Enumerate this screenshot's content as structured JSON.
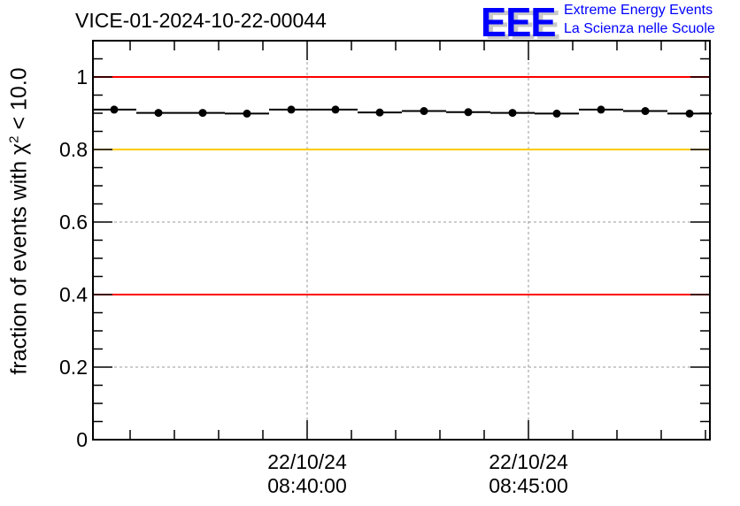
{
  "logo": {
    "mark": "EEE",
    "line1": "Extreme Energy Events",
    "line2": "La Scienza nelle Scuole",
    "color": "#0000ff"
  },
  "chart_data": {
    "type": "scatter",
    "title": "VICE-01-2024-10-22-00044",
    "xlabel": "",
    "ylabel": "fraction of events with χ² < 10.0",
    "ylabel_parts": {
      "pre": "fraction of events with χ",
      "sup": "2",
      "post": " < 10.0"
    },
    "x_units": "minutes after 22/10/24 08:35:00",
    "xlim": [
      0.16,
      14.1
    ],
    "ylim": [
      0,
      1.1
    ],
    "bin_width": 1,
    "x": [
      0.64,
      1.64,
      2.64,
      3.64,
      4.64,
      5.64,
      6.64,
      7.64,
      8.64,
      9.64,
      10.64,
      11.64,
      12.64,
      13.64
    ],
    "y": [
      0.91,
      0.901,
      0.901,
      0.899,
      0.91,
      0.91,
      0.902,
      0.906,
      0.903,
      0.901,
      0.899,
      0.91,
      0.906,
      0.899
    ],
    "x_ticks": [
      {
        "x": 5,
        "date": "22/10/24",
        "time": "08:40:00"
      },
      {
        "x": 10,
        "date": "22/10/24",
        "time": "08:45:00"
      }
    ],
    "y_ticks": [
      {
        "v": 0,
        "label": "0"
      },
      {
        "v": 0.2,
        "label": "0.2"
      },
      {
        "v": 0.4,
        "label": "0.4"
      },
      {
        "v": 0.6,
        "label": "0.6"
      },
      {
        "v": 0.8,
        "label": "0.8"
      },
      {
        "v": 1,
        "label": "1"
      }
    ],
    "reference_lines": [
      {
        "y": 1.0,
        "color": "#ff0000"
      },
      {
        "y": 0.8,
        "color": "#ffcc00"
      },
      {
        "y": 0.4,
        "color": "#ff0000"
      }
    ],
    "grid": true
  }
}
